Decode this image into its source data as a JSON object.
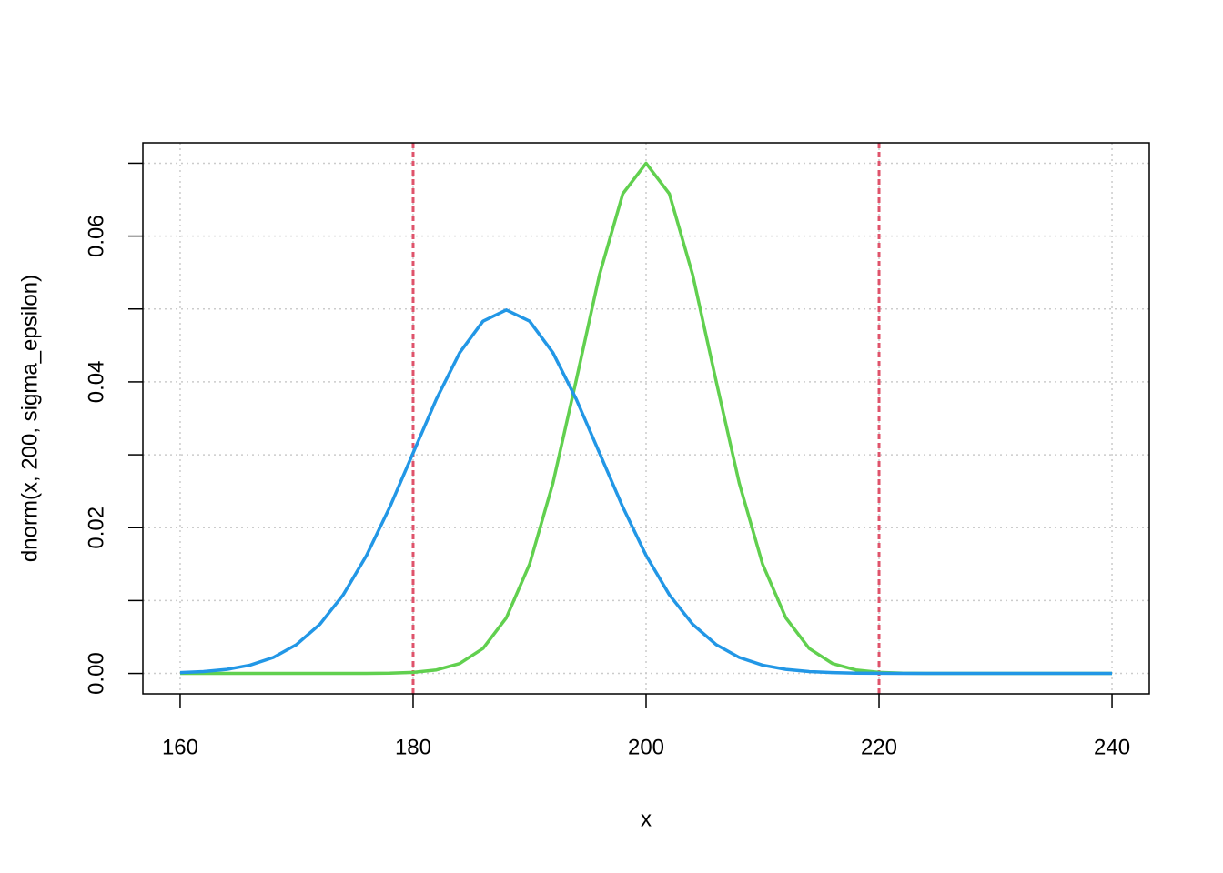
{
  "chart_data": {
    "type": "line",
    "x_label": "x",
    "y_label": "dnorm(x, 200, sigma_epsilon)",
    "x": [
      160,
      162,
      164,
      166,
      168,
      170,
      172,
      174,
      176,
      178,
      180,
      182,
      184,
      186,
      188,
      190,
      192,
      194,
      196,
      198,
      200,
      202,
      204,
      206,
      208,
      210,
      212,
      214,
      216,
      218,
      220,
      222,
      224,
      226,
      228,
      230,
      232,
      234,
      236,
      238,
      240
    ],
    "series": [
      {
        "color": "#61d04f",
        "values": [
          0,
          0,
          0,
          0,
          0,
          0,
          0,
          0,
          1e-05,
          4e-05,
          0.00015,
          0.00048,
          0.00136,
          0.00343,
          0.00763,
          0.015,
          0.0261,
          0.0402,
          0.0547,
          0.0658,
          0.07,
          0.0658,
          0.0547,
          0.0402,
          0.0261,
          0.015,
          0.00763,
          0.00343,
          0.00136,
          0.00048,
          0.00015,
          4e-05,
          1e-05,
          0,
          0,
          0,
          0,
          0,
          0,
          0,
          0
        ]
      },
      {
        "color": "#2297e6",
        "values": [
          0.00011,
          0.00025,
          0.00055,
          0.00114,
          0.00219,
          0.00397,
          0.00675,
          0.01079,
          0.01619,
          0.02283,
          0.03025,
          0.03764,
          0.04401,
          0.04833,
          0.04987,
          0.04833,
          0.04401,
          0.03764,
          0.03025,
          0.02283,
          0.01619,
          0.01079,
          0.00675,
          0.00397,
          0.00219,
          0.00114,
          0.00055,
          0.00025,
          0.00011,
          4e-05,
          2e-05,
          1e-05,
          0,
          0,
          0,
          0,
          0,
          0,
          0,
          0,
          0
        ]
      }
    ],
    "xlim": [
      156.8,
      243.2
    ],
    "ylim": [
      -0.0028,
      0.0728
    ],
    "xticks": [
      160,
      180,
      200,
      220,
      240
    ],
    "yticks": [
      {
        "value": 0,
        "label": "0.00"
      },
      0.02,
      0.04,
      0.06
    ],
    "minor_yticks": [
      0.01,
      0.03,
      0.05,
      0.07
    ],
    "grid": true,
    "reference_lines": {
      "values": [
        180,
        220
      ],
      "color": "#df536b"
    }
  }
}
